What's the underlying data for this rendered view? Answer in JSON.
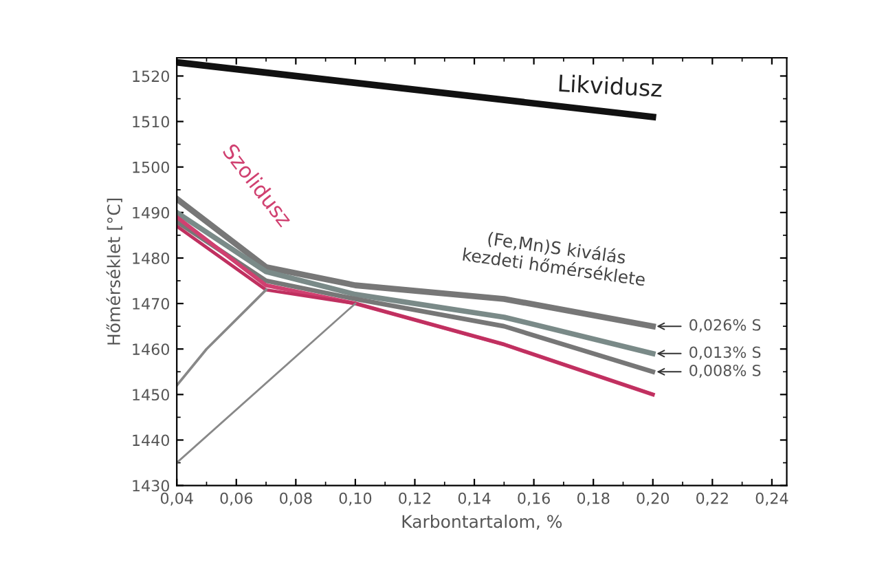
{
  "chart_data": {
    "type": "line",
    "xlabel": "Karbontartalom, %",
    "ylabel": "Hőmérséklet [°C]",
    "xlim": [
      0.04,
      0.245
    ],
    "ylim": [
      1430,
      1524
    ],
    "xticks": [
      {
        "value": 0.04,
        "label": "0,04"
      },
      {
        "value": 0.06,
        "label": "0,06"
      },
      {
        "value": 0.08,
        "label": "0,08"
      },
      {
        "value": 0.1,
        "label": "0,10"
      },
      {
        "value": 0.12,
        "label": "0,12"
      },
      {
        "value": 0.14,
        "label": "0,14"
      },
      {
        "value": 0.16,
        "label": "0,16"
      },
      {
        "value": 0.18,
        "label": "0,18"
      },
      {
        "value": 0.2,
        "label": "0,20"
      },
      {
        "value": 0.22,
        "label": "0,22"
      },
      {
        "value": 0.24,
        "label": "0,24"
      }
    ],
    "yticks": [
      1430,
      1440,
      1450,
      1460,
      1470,
      1480,
      1490,
      1500,
      1510,
      1520
    ],
    "grid": false,
    "legend": false,
    "marker": "none",
    "line_style": "solid",
    "series": [
      {
        "color": "#111111",
        "x": [
          0.04,
          0.2
        ],
        "values": [
          1523,
          1511
        ]
      },
      {
        "name": "0,026% S",
        "color": "#777777",
        "x": [
          0.04,
          0.07,
          0.1,
          0.15,
          0.2
        ],
        "values": [
          1493,
          1478,
          1474,
          1471,
          1465
        ]
      },
      {
        "name": "0,013% S",
        "color": "#7a8a88",
        "x": [
          0.04,
          0.07,
          0.1,
          0.15,
          0.2
        ],
        "values": [
          1490,
          1477,
          1472,
          1467,
          1459
        ]
      },
      {
        "name": "0,008% S",
        "color": "#777777",
        "x": [
          0.04,
          0.07,
          0.1,
          0.15,
          0.2
        ],
        "values": [
          1488,
          1475,
          1471,
          1465,
          1455
        ]
      },
      {
        "color": "#d04070",
        "x": [
          0.04,
          0.07,
          0.1,
          0.15,
          0.2
        ],
        "values": [
          1489,
          1474,
          1470,
          1461,
          1450
        ]
      },
      {
        "color": "#c03060",
        "x": [
          0.04,
          0.07,
          0.1,
          0.15,
          0.2
        ],
        "values": [
          1487,
          1473,
          1470,
          1461,
          1450
        ]
      },
      {
        "color": "#888888",
        "x": [
          0.04,
          0.05,
          0.07
        ],
        "values": [
          1452,
          1460,
          1473
        ]
      },
      {
        "color": "#888888",
        "x": [
          0.04,
          0.1
        ],
        "values": [
          1435,
          1470
        ]
      }
    ],
    "annotations": [
      "Likvidusz",
      "Szolidusz",
      "(Fe,Mn)S kiválás\nkezdeti hőmérséklete"
    ]
  }
}
